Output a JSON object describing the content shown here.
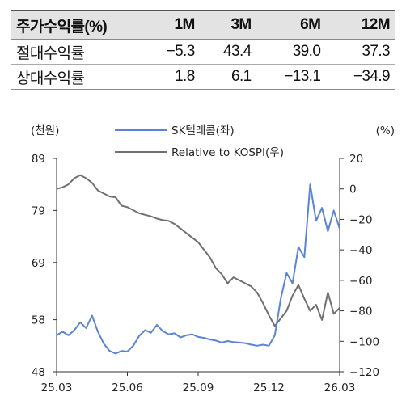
{
  "table": {
    "headers": [
      "주가수익률(%)",
      "1M",
      "3M",
      "6M",
      "12M"
    ],
    "rows": [
      {
        "label": "절대수익률",
        "values": [
          "−5.3",
          "43.4",
          "39.0",
          "37.3"
        ]
      },
      {
        "label": "상대수익률",
        "values": [
          "1.8",
          "6.1",
          "−13.1",
          "−34.9"
        ]
      }
    ]
  },
  "chart_data": {
    "type": "line",
    "left_unit": "(천원)",
    "right_unit": "(%)",
    "x_ticks": [
      "25.03",
      "25.06",
      "25.09",
      "25.12",
      "26.03"
    ],
    "y_left": {
      "min": 48,
      "max": 89,
      "ticks": [
        "89",
        "79",
        "69",
        "58",
        "48"
      ]
    },
    "y_right": {
      "min": -120,
      "max": 20,
      "ticks": [
        "20",
        "0",
        "−20",
        "−40",
        "−60",
        "−80",
        "−100",
        "−120"
      ]
    },
    "legend_placement": "top",
    "grid": false,
    "colors": {
      "sk": "#5b84d4",
      "rel": "#707070"
    },
    "series": [
      {
        "name": "SK텔레콤(좌)",
        "axis": "left",
        "points": [
          [
            "25.03",
            55.0
          ],
          [
            "25.03.2",
            55.7
          ],
          [
            "25.03.3",
            55.0
          ],
          [
            "25.04",
            56.0
          ],
          [
            "25.04.2",
            57.5
          ],
          [
            "25.04.3",
            56.4
          ],
          [
            "25.04.4",
            58.8
          ],
          [
            "25.05",
            55.7
          ],
          [
            "25.05.2",
            53.4
          ],
          [
            "25.05.3",
            52.0
          ],
          [
            "25.05.4",
            51.5
          ],
          [
            "25.06",
            52.0
          ],
          [
            "25.06.2",
            51.9
          ],
          [
            "25.06.3",
            53.0
          ],
          [
            "25.06.4",
            54.9
          ],
          [
            "25.07",
            56.0
          ],
          [
            "25.07.2",
            55.5
          ],
          [
            "25.07.3",
            57.0
          ],
          [
            "25.07.4",
            55.8
          ],
          [
            "25.08",
            55.2
          ],
          [
            "25.08.2",
            55.4
          ],
          [
            "25.08.3",
            54.6
          ],
          [
            "25.08.4",
            55.0
          ],
          [
            "25.09",
            55.2
          ],
          [
            "25.09.2",
            54.7
          ],
          [
            "25.09.3",
            54.5
          ],
          [
            "25.09.4",
            54.2
          ],
          [
            "25.10",
            54.0
          ],
          [
            "25.10.2",
            53.6
          ],
          [
            "25.10.3",
            53.9
          ],
          [
            "25.10.4",
            53.7
          ],
          [
            "25.11",
            53.6
          ],
          [
            "25.11.2",
            53.5
          ],
          [
            "25.11.3",
            53.2
          ],
          [
            "25.11.4",
            53.0
          ],
          [
            "25.12",
            53.2
          ],
          [
            "25.12.2",
            53.0
          ],
          [
            "25.12.3",
            55.0
          ],
          [
            "25.12.4",
            62.0
          ],
          [
            "26.01",
            67.0
          ],
          [
            "26.01.2",
            65.0
          ],
          [
            "26.01.3",
            72.0
          ],
          [
            "26.01.4",
            70.0
          ],
          [
            "26.02",
            84.0
          ],
          [
            "26.02.2",
            77.0
          ],
          [
            "26.02.3",
            79.5
          ],
          [
            "26.02.4",
            75.0
          ],
          [
            "26.03",
            79.0
          ],
          [
            "26.03.2",
            75.5
          ]
        ]
      },
      {
        "name": "Relative to KOSPI(우)",
        "axis": "right",
        "points": [
          [
            "25.03",
            0.0
          ],
          [
            "25.03.2",
            1.0
          ],
          [
            "25.03.3",
            3.0
          ],
          [
            "25.04",
            7.0
          ],
          [
            "25.04.2",
            9.0
          ],
          [
            "25.04.3",
            7.0
          ],
          [
            "25.04.4",
            4.0
          ],
          [
            "25.05",
            -1.0
          ],
          [
            "25.05.2",
            -3.0
          ],
          [
            "25.05.3",
            -5.0
          ],
          [
            "25.05.4",
            -5.5
          ],
          [
            "25.06",
            -11.0
          ],
          [
            "25.06.2",
            -12.0
          ],
          [
            "25.06.3",
            -14.0
          ],
          [
            "25.06.4",
            -16.0
          ],
          [
            "25.07",
            -17.0
          ],
          [
            "25.07.2",
            -18.0
          ],
          [
            "25.07.3",
            -19.5
          ],
          [
            "25.07.4",
            -20.5
          ],
          [
            "25.08",
            -21.0
          ],
          [
            "25.08.2",
            -23.0
          ],
          [
            "25.08.3",
            -26.0
          ],
          [
            "25.08.4",
            -29.0
          ],
          [
            "25.09",
            -32.0
          ],
          [
            "25.09.2",
            -35.0
          ],
          [
            "25.09.3",
            -40.0
          ],
          [
            "25.09.4",
            -45.0
          ],
          [
            "25.10",
            -52.0
          ],
          [
            "25.10.2",
            -56.0
          ],
          [
            "25.10.3",
            -62.0
          ],
          [
            "25.10.4",
            -58.0
          ],
          [
            "25.11",
            -60.0
          ],
          [
            "25.11.2",
            -62.0
          ],
          [
            "25.11.3",
            -64.0
          ],
          [
            "25.11.4",
            -68.0
          ],
          [
            "25.12",
            -75.0
          ],
          [
            "25.12.2",
            -83.0
          ],
          [
            "25.12.3",
            -90.0
          ],
          [
            "25.12.4",
            -85.0
          ],
          [
            "26.01",
            -80.0
          ],
          [
            "26.01.2",
            -70.0
          ],
          [
            "26.01.3",
            -63.0
          ],
          [
            "26.01.4",
            -72.0
          ],
          [
            "26.02",
            -80.0
          ],
          [
            "26.02.2",
            -76.0
          ],
          [
            "26.02.3",
            -86.0
          ],
          [
            "26.02.4",
            -68.0
          ],
          [
            "26.03",
            -82.0
          ],
          [
            "26.03.2",
            -78.0
          ]
        ]
      }
    ]
  }
}
